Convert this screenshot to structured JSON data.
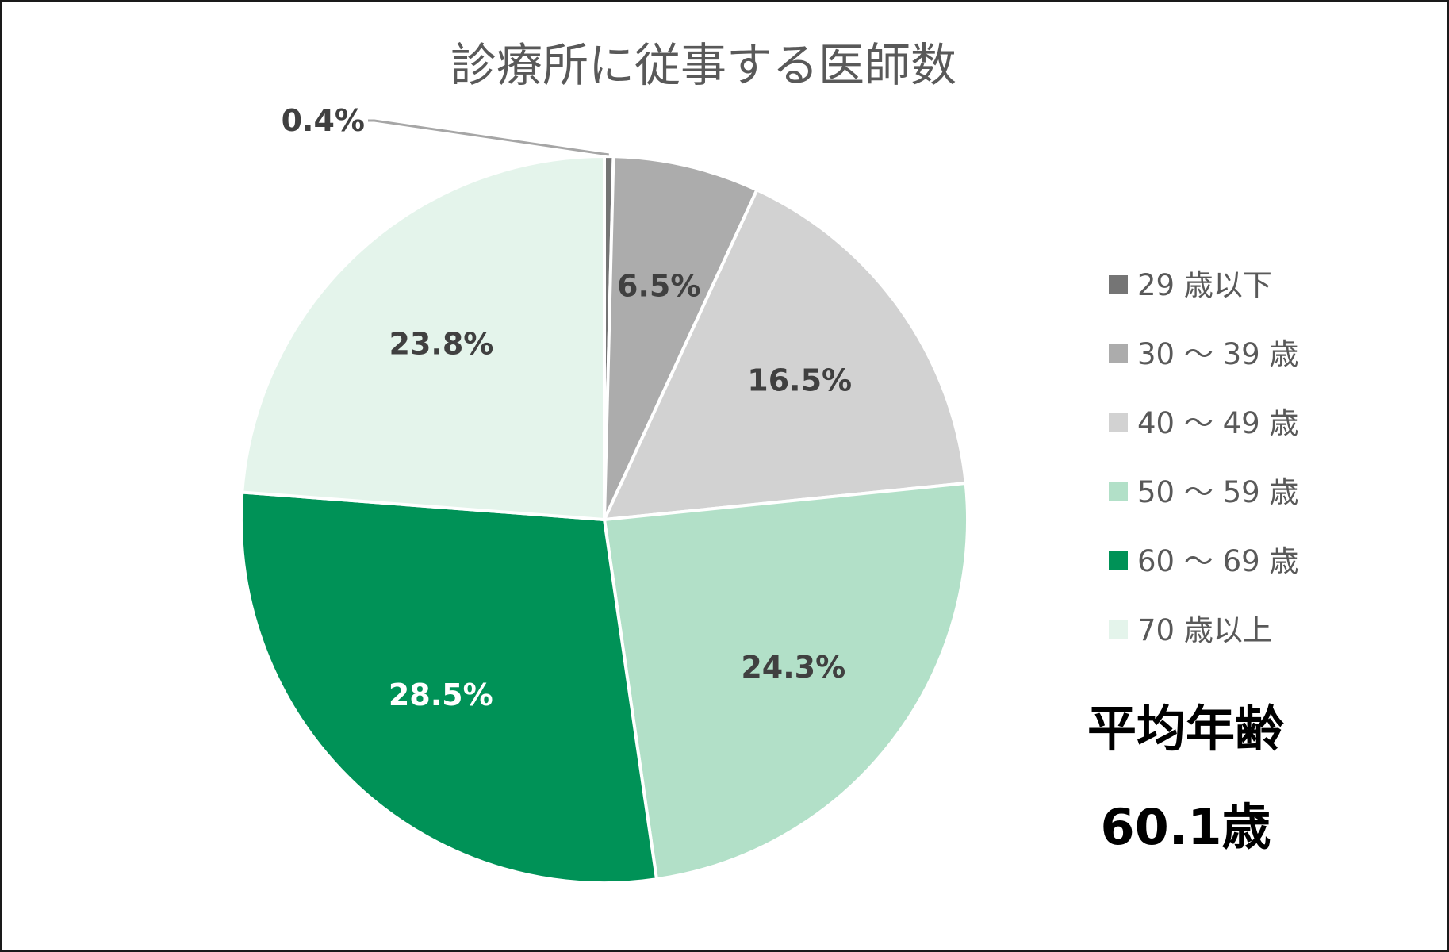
{
  "chart_data": {
    "type": "pie",
    "title": "診療所に従事する医師数",
    "categories": [
      "29 歳以下",
      "30 ～ 39 歳",
      "40 ～ 49 歳",
      "50 ～ 59 歳",
      "60 ～ 69 歳",
      "70 歳以上"
    ],
    "values": [
      0.4,
      6.5,
      16.5,
      24.3,
      28.5,
      23.8
    ],
    "labels": [
      "0.4%",
      "6.5%",
      "16.5%",
      "24.3%",
      "28.5%",
      "23.8%"
    ],
    "colors": [
      "#757575",
      "#acacac",
      "#d2d2d2",
      "#b2e0c8",
      "#009257",
      "#e4f4eb"
    ],
    "label_colors": [
      "#404040",
      "#404040",
      "#404040",
      "#404040",
      "#ffffff",
      "#404040"
    ],
    "legend_position": "right"
  },
  "annotation": {
    "heading": "平均年齢",
    "value": "60.1歳"
  }
}
